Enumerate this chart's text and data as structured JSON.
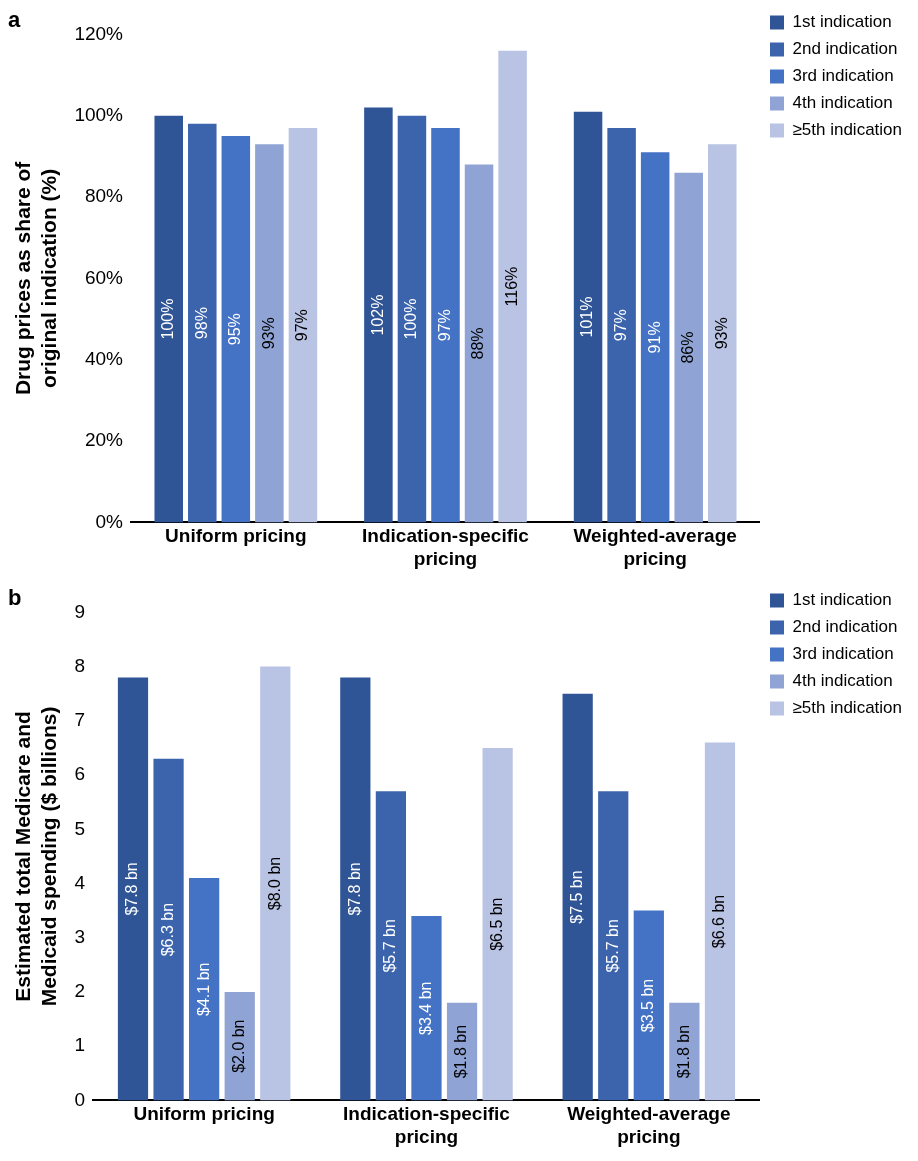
{
  "chart_data": [
    {
      "type": "bar",
      "title": "a",
      "ylabel": "Drug prices as share of original indication (%)",
      "categories": [
        "Uniform pricing",
        "Indication-specific pricing",
        "Weighted-average pricing"
      ],
      "series": [
        {
          "name": "1st indication",
          "color": "#2f5597",
          "values": [
            100,
            102,
            101
          ],
          "value_labels": [
            "100%",
            "102%",
            "101%"
          ]
        },
        {
          "name": "2nd indication",
          "color": "#3b64ad",
          "values": [
            98,
            100,
            97
          ],
          "value_labels": [
            "98%",
            "100%",
            "97%"
          ]
        },
        {
          "name": "3rd indication",
          "color": "#4472c4",
          "values": [
            95,
            97,
            91
          ],
          "value_labels": [
            "95%",
            "97%",
            "91%"
          ]
        },
        {
          "name": "4th indication",
          "color": "#8fa3d4",
          "values": [
            93,
            88,
            86
          ],
          "value_labels": [
            "93%",
            "88%",
            "86%"
          ]
        },
        {
          "name": "≥5th indication",
          "color": "#b9c3e3",
          "values": [
            97,
            116,
            93
          ],
          "value_labels": [
            "97%",
            "116%",
            "93%"
          ]
        }
      ],
      "ylim": [
        0,
        120
      ],
      "yticks": [
        {
          "value": 0,
          "label": "0%"
        },
        {
          "value": 20,
          "label": "20%"
        },
        {
          "value": 40,
          "label": "40%"
        },
        {
          "value": 60,
          "label": "60%"
        },
        {
          "value": 80,
          "label": "80%"
        },
        {
          "value": 100,
          "label": "100%"
        },
        {
          "value": 120,
          "label": "120%"
        }
      ],
      "grid": false,
      "legend": "top right"
    },
    {
      "type": "bar",
      "title": "b",
      "ylabel": "Estimated total Medicare and Medicaid spending ($ billions)",
      "categories": [
        "Uniform pricing",
        "Indication-specific pricing",
        "Weighted-average pricing"
      ],
      "series": [
        {
          "name": "1st indication",
          "color": "#2f5597",
          "values": [
            7.8,
            7.8,
            7.5
          ],
          "value_labels": [
            "$7.8 bn",
            "$7.8 bn",
            "$7.5 bn"
          ]
        },
        {
          "name": "2nd indication",
          "color": "#3b64ad",
          "values": [
            6.3,
            5.7,
            5.7
          ],
          "value_labels": [
            "$6.3 bn",
            "$5.7 bn",
            "$5.7 bn"
          ]
        },
        {
          "name": "3rd indication",
          "color": "#4472c4",
          "values": [
            4.1,
            3.4,
            3.5
          ],
          "value_labels": [
            "$4.1 bn",
            "$3.4 bn",
            "$3.5 bn"
          ]
        },
        {
          "name": "4th indication",
          "color": "#8fa3d4",
          "values": [
            2.0,
            1.8,
            1.8
          ],
          "value_labels": [
            "$2.0 bn",
            "$1.8 bn",
            "$1.8 bn"
          ]
        },
        {
          "name": "≥5th indication",
          "color": "#b9c3e3",
          "values": [
            8.0,
            6.5,
            6.6
          ],
          "value_labels": [
            "$8.0 bn",
            "$6.5 bn",
            "$6.6 bn"
          ]
        }
      ],
      "ylim": [
        0,
        9
      ],
      "yticks": [
        0,
        1,
        2,
        3,
        4,
        5,
        6,
        7,
        8,
        9
      ],
      "grid": false,
      "legend": "top right"
    }
  ]
}
